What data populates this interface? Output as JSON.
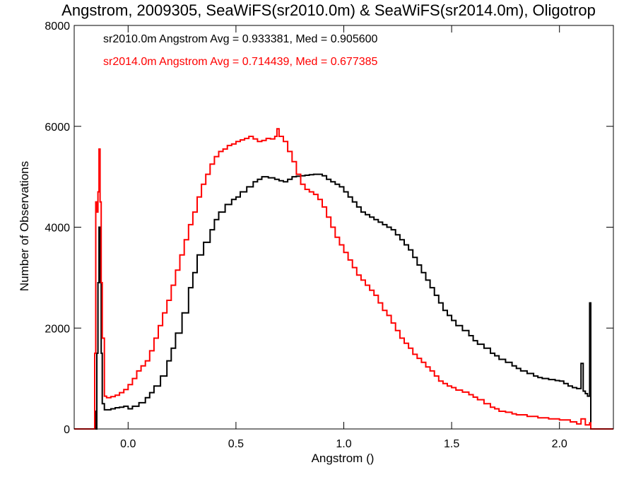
{
  "chart_data": {
    "type": "line",
    "title": "Angstrom, 2009305, SeaWiFS(sr2010.0m) & SeaWiFS(sr2014.0m), Oligotrop",
    "xlabel": "Angstrom ()",
    "ylabel": "Number of Observations",
    "xlim": [
      -0.25,
      2.25
    ],
    "ylim": [
      0,
      8000
    ],
    "xticks": [
      0.0,
      0.5,
      1.0,
      1.5,
      2.0
    ],
    "xtick_labels": [
      "0.0",
      "0.5",
      "1.0",
      "1.5",
      "2.0"
    ],
    "yticks": [
      0,
      2000,
      4000,
      6000,
      8000
    ],
    "ytick_labels": [
      "0",
      "2000",
      "4000",
      "6000",
      "8000"
    ],
    "step": true,
    "grid": false,
    "annotations": [
      {
        "text": "sr2010.0m Angstrom Avg = 0.933381, Med = 0.905600",
        "color": "#000000"
      },
      {
        "text": "sr2014.0m Angstrom Avg = 0.714439, Med = 0.677385",
        "color": "#ff0000"
      }
    ],
    "series": [
      {
        "color": "#000000",
        "points": [
          [
            -0.25,
            0
          ],
          [
            -0.16,
            0
          ],
          [
            -0.155,
            350
          ],
          [
            -0.15,
            0
          ],
          [
            -0.145,
            1500
          ],
          [
            -0.14,
            2900
          ],
          [
            -0.135,
            4000
          ],
          [
            -0.13,
            2900
          ],
          [
            -0.125,
            1500
          ],
          [
            -0.12,
            500
          ],
          [
            -0.11,
            380
          ],
          [
            -0.1,
            380
          ],
          [
            -0.08,
            400
          ],
          [
            -0.06,
            420
          ],
          [
            -0.04,
            430
          ],
          [
            -0.02,
            450
          ],
          [
            0.0,
            400
          ],
          [
            0.02,
            450
          ],
          [
            0.05,
            520
          ],
          [
            0.08,
            620
          ],
          [
            0.1,
            720
          ],
          [
            0.12,
            850
          ],
          [
            0.15,
            1050
          ],
          [
            0.18,
            1350
          ],
          [
            0.2,
            1600
          ],
          [
            0.22,
            1900
          ],
          [
            0.25,
            2300
          ],
          [
            0.28,
            2800
          ],
          [
            0.3,
            3100
          ],
          [
            0.32,
            3450
          ],
          [
            0.35,
            3700
          ],
          [
            0.38,
            3950
          ],
          [
            0.4,
            4150
          ],
          [
            0.42,
            4300
          ],
          [
            0.45,
            4450
          ],
          [
            0.48,
            4550
          ],
          [
            0.5,
            4600
          ],
          [
            0.52,
            4700
          ],
          [
            0.55,
            4800
          ],
          [
            0.58,
            4900
          ],
          [
            0.6,
            4950
          ],
          [
            0.62,
            5000
          ],
          [
            0.65,
            4980
          ],
          [
            0.68,
            4950
          ],
          [
            0.7,
            4920
          ],
          [
            0.72,
            4900
          ],
          [
            0.74,
            4950
          ],
          [
            0.76,
            5000
          ],
          [
            0.78,
            5010
          ],
          [
            0.8,
            5020
          ],
          [
            0.82,
            5030
          ],
          [
            0.84,
            5040
          ],
          [
            0.86,
            5050
          ],
          [
            0.88,
            5050
          ],
          [
            0.9,
            5020
          ],
          [
            0.92,
            4950
          ],
          [
            0.94,
            4900
          ],
          [
            0.96,
            4850
          ],
          [
            0.98,
            4800
          ],
          [
            1.0,
            4700
          ],
          [
            1.02,
            4600
          ],
          [
            1.04,
            4500
          ],
          [
            1.06,
            4400
          ],
          [
            1.08,
            4300
          ],
          [
            1.1,
            4250
          ],
          [
            1.12,
            4200
          ],
          [
            1.14,
            4150
          ],
          [
            1.16,
            4100
          ],
          [
            1.18,
            4050
          ],
          [
            1.2,
            4000
          ],
          [
            1.22,
            3950
          ],
          [
            1.24,
            3850
          ],
          [
            1.26,
            3750
          ],
          [
            1.28,
            3650
          ],
          [
            1.3,
            3550
          ],
          [
            1.32,
            3400
          ],
          [
            1.34,
            3250
          ],
          [
            1.36,
            3100
          ],
          [
            1.38,
            2950
          ],
          [
            1.4,
            2800
          ],
          [
            1.42,
            2650
          ],
          [
            1.44,
            2500
          ],
          [
            1.46,
            2350
          ],
          [
            1.48,
            2250
          ],
          [
            1.5,
            2150
          ],
          [
            1.52,
            2050
          ],
          [
            1.55,
            1950
          ],
          [
            1.58,
            1850
          ],
          [
            1.6,
            1750
          ],
          [
            1.62,
            1680
          ],
          [
            1.65,
            1600
          ],
          [
            1.68,
            1500
          ],
          [
            1.7,
            1450
          ],
          [
            1.72,
            1380
          ],
          [
            1.75,
            1320
          ],
          [
            1.78,
            1250
          ],
          [
            1.8,
            1200
          ],
          [
            1.82,
            1150
          ],
          [
            1.85,
            1100
          ],
          [
            1.88,
            1050
          ],
          [
            1.9,
            1020
          ],
          [
            1.92,
            1000
          ],
          [
            1.95,
            980
          ],
          [
            1.98,
            960
          ],
          [
            2.0,
            950
          ],
          [
            2.02,
            900
          ],
          [
            2.04,
            850
          ],
          [
            2.06,
            820
          ],
          [
            2.08,
            800
          ],
          [
            2.1,
            1300
          ],
          [
            2.11,
            750
          ],
          [
            2.12,
            700
          ],
          [
            2.13,
            650
          ],
          [
            2.14,
            2500
          ],
          [
            2.145,
            0
          ],
          [
            2.25,
            0
          ]
        ]
      },
      {
        "color": "#ff0000",
        "points": [
          [
            -0.25,
            0
          ],
          [
            -0.16,
            0
          ],
          [
            -0.155,
            1500
          ],
          [
            -0.15,
            4500
          ],
          [
            -0.145,
            4300
          ],
          [
            -0.14,
            4700
          ],
          [
            -0.135,
            5550
          ],
          [
            -0.13,
            4500
          ],
          [
            -0.125,
            2900
          ],
          [
            -0.12,
            1800
          ],
          [
            -0.11,
            650
          ],
          [
            -0.1,
            620
          ],
          [
            -0.08,
            640
          ],
          [
            -0.06,
            670
          ],
          [
            -0.04,
            720
          ],
          [
            -0.02,
            780
          ],
          [
            0.0,
            880
          ],
          [
            0.02,
            1000
          ],
          [
            0.04,
            1150
          ],
          [
            0.06,
            1250
          ],
          [
            0.08,
            1350
          ],
          [
            0.1,
            1550
          ],
          [
            0.12,
            1800
          ],
          [
            0.14,
            2050
          ],
          [
            0.16,
            2300
          ],
          [
            0.18,
            2550
          ],
          [
            0.2,
            2850
          ],
          [
            0.22,
            3150
          ],
          [
            0.24,
            3450
          ],
          [
            0.26,
            3750
          ],
          [
            0.28,
            4050
          ],
          [
            0.3,
            4300
          ],
          [
            0.32,
            4600
          ],
          [
            0.34,
            4850
          ],
          [
            0.36,
            5050
          ],
          [
            0.38,
            5250
          ],
          [
            0.4,
            5400
          ],
          [
            0.42,
            5500
          ],
          [
            0.44,
            5550
          ],
          [
            0.46,
            5620
          ],
          [
            0.48,
            5650
          ],
          [
            0.5,
            5700
          ],
          [
            0.52,
            5730
          ],
          [
            0.54,
            5760
          ],
          [
            0.56,
            5800
          ],
          [
            0.58,
            5750
          ],
          [
            0.6,
            5700
          ],
          [
            0.62,
            5720
          ],
          [
            0.64,
            5760
          ],
          [
            0.66,
            5750
          ],
          [
            0.68,
            5800
          ],
          [
            0.69,
            5950
          ],
          [
            0.7,
            5800
          ],
          [
            0.72,
            5700
          ],
          [
            0.74,
            5500
          ],
          [
            0.76,
            5300
          ],
          [
            0.78,
            5050
          ],
          [
            0.8,
            4850
          ],
          [
            0.82,
            4750
          ],
          [
            0.84,
            4700
          ],
          [
            0.86,
            4650
          ],
          [
            0.88,
            4550
          ],
          [
            0.9,
            4400
          ],
          [
            0.92,
            4200
          ],
          [
            0.94,
            4000
          ],
          [
            0.96,
            3800
          ],
          [
            0.98,
            3650
          ],
          [
            1.0,
            3500
          ],
          [
            1.02,
            3350
          ],
          [
            1.04,
            3200
          ],
          [
            1.06,
            3050
          ],
          [
            1.08,
            2950
          ],
          [
            1.1,
            2850
          ],
          [
            1.12,
            2750
          ],
          [
            1.14,
            2650
          ],
          [
            1.16,
            2500
          ],
          [
            1.18,
            2350
          ],
          [
            1.2,
            2250
          ],
          [
            1.22,
            2100
          ],
          [
            1.24,
            1950
          ],
          [
            1.26,
            1800
          ],
          [
            1.28,
            1700
          ],
          [
            1.3,
            1600
          ],
          [
            1.32,
            1480
          ],
          [
            1.34,
            1400
          ],
          [
            1.36,
            1320
          ],
          [
            1.38,
            1230
          ],
          [
            1.4,
            1150
          ],
          [
            1.42,
            1050
          ],
          [
            1.44,
            950
          ],
          [
            1.46,
            900
          ],
          [
            1.48,
            850
          ],
          [
            1.5,
            820
          ],
          [
            1.52,
            770
          ],
          [
            1.55,
            730
          ],
          [
            1.58,
            680
          ],
          [
            1.6,
            630
          ],
          [
            1.62,
            580
          ],
          [
            1.65,
            500
          ],
          [
            1.68,
            430
          ],
          [
            1.7,
            400
          ],
          [
            1.72,
            350
          ],
          [
            1.75,
            330
          ],
          [
            1.78,
            300
          ],
          [
            1.8,
            280
          ],
          [
            1.85,
            250
          ],
          [
            1.9,
            220
          ],
          [
            1.95,
            200
          ],
          [
            2.0,
            180
          ],
          [
            2.05,
            140
          ],
          [
            2.08,
            100
          ],
          [
            2.1,
            200
          ],
          [
            2.12,
            80
          ],
          [
            2.14,
            120
          ],
          [
            2.145,
            0
          ],
          [
            2.25,
            0
          ]
        ]
      }
    ]
  }
}
